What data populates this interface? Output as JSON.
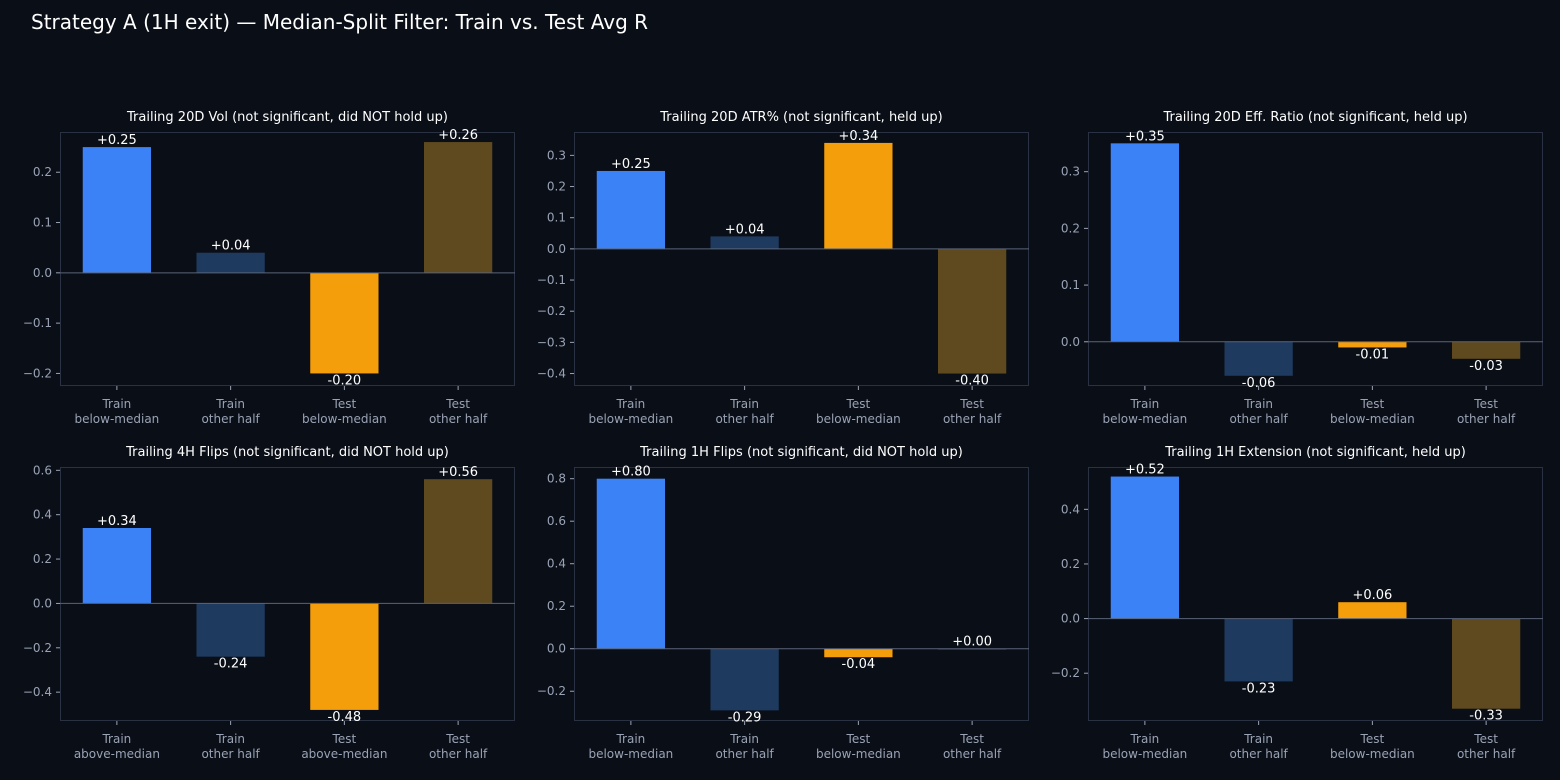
{
  "figure": {
    "title": "Strategy A (1H exit) — Median-Split Filter: Train vs. Test Avg R"
  },
  "colors": {
    "background": "#0a0e17",
    "axes_frame": "#2a3142",
    "zero_line": "#5a6478",
    "tick_text": "#9aa3b5",
    "title_text": "#ffffff",
    "value_text": "#ffffff",
    "bars": [
      "#3b82f6",
      "#1e3a5f",
      "#f59e0b",
      "#5f4a1f"
    ]
  },
  "chart_data": [
    {
      "type": "bar",
      "title": "Trailing 20D Vol (not significant, did NOT hold up)",
      "categories": [
        [
          "Train",
          "below-median"
        ],
        [
          "Train",
          "other half"
        ],
        [
          "Test",
          "below-median"
        ],
        [
          "Test",
          "other half"
        ]
      ],
      "values": [
        0.25,
        0.04,
        -0.2,
        0.26
      ],
      "value_labels": [
        "+0.25",
        "+0.04",
        "-0.20",
        "+0.26"
      ],
      "ylim": [
        -0.225,
        0.28
      ],
      "yticks": [
        -0.2,
        -0.1,
        0.0,
        0.1,
        0.2
      ],
      "ytick_labels": [
        "−0.2",
        "−0.1",
        "0.0",
        "0.1",
        "0.2"
      ],
      "xlabel": "",
      "ylabel": "",
      "grid": false
    },
    {
      "type": "bar",
      "title": "Trailing 20D ATR% (not significant, held up)",
      "categories": [
        [
          "Train",
          "below-median"
        ],
        [
          "Train",
          "other half"
        ],
        [
          "Test",
          "below-median"
        ],
        [
          "Test",
          "other half"
        ]
      ],
      "values": [
        0.25,
        0.04,
        0.34,
        -0.4
      ],
      "value_labels": [
        "+0.25",
        "+0.04",
        "+0.34",
        "-0.40"
      ],
      "ylim": [
        -0.44,
        0.375
      ],
      "yticks": [
        -0.4,
        -0.3,
        -0.2,
        -0.1,
        0.0,
        0.1,
        0.2,
        0.3
      ],
      "ytick_labels": [
        "−0.4",
        "−0.3",
        "−0.2",
        "−0.1",
        "0.0",
        "0.1",
        "0.2",
        "0.3"
      ],
      "xlabel": "",
      "ylabel": "",
      "grid": false
    },
    {
      "type": "bar",
      "title": "Trailing 20D Eff. Ratio (not significant, held up)",
      "categories": [
        [
          "Train",
          "below-median"
        ],
        [
          "Train",
          "other half"
        ],
        [
          "Test",
          "below-median"
        ],
        [
          "Test",
          "other half"
        ]
      ],
      "values": [
        0.35,
        -0.06,
        -0.01,
        -0.03
      ],
      "value_labels": [
        "+0.35",
        "-0.06",
        "-0.01",
        "-0.03"
      ],
      "ylim": [
        -0.078,
        0.37
      ],
      "yticks": [
        0.0,
        0.1,
        0.2,
        0.3
      ],
      "ytick_labels": [
        "0.0",
        "0.1",
        "0.2",
        "0.3"
      ],
      "xlabel": "",
      "ylabel": "",
      "grid": false
    },
    {
      "type": "bar",
      "title": "Trailing 4H Flips (not significant, did NOT hold up)",
      "categories": [
        [
          "Train",
          "above-median"
        ],
        [
          "Train",
          "other half"
        ],
        [
          "Test",
          "above-median"
        ],
        [
          "Test",
          "other half"
        ]
      ],
      "values": [
        0.34,
        -0.24,
        -0.48,
        0.56
      ],
      "value_labels": [
        "+0.34",
        "-0.24",
        "-0.48",
        "+0.56"
      ],
      "ylim": [
        -0.53,
        0.615
      ],
      "yticks": [
        -0.4,
        -0.2,
        0.0,
        0.2,
        0.4,
        0.6
      ],
      "ytick_labels": [
        "−0.4",
        "−0.2",
        "0.0",
        "0.2",
        "0.4",
        "0.6"
      ],
      "xlabel": "",
      "ylabel": "",
      "grid": false
    },
    {
      "type": "bar",
      "title": "Trailing 1H Flips (not significant, did NOT hold up)",
      "categories": [
        [
          "Train",
          "below-median"
        ],
        [
          "Train",
          "other half"
        ],
        [
          "Test",
          "below-median"
        ],
        [
          "Test",
          "other half"
        ]
      ],
      "values": [
        0.8,
        -0.29,
        -0.04,
        0.0
      ],
      "value_labels": [
        "+0.80",
        "-0.29",
        "-0.04",
        "+0.00"
      ],
      "ylim": [
        -0.34,
        0.855
      ],
      "yticks": [
        -0.2,
        0.0,
        0.2,
        0.4,
        0.6,
        0.8
      ],
      "ytick_labels": [
        "−0.2",
        "0.0",
        "0.2",
        "0.4",
        "0.6",
        "0.8"
      ],
      "xlabel": "",
      "ylabel": "",
      "grid": false
    },
    {
      "type": "bar",
      "title": "Trailing 1H Extension (not significant, held up)",
      "categories": [
        [
          "Train",
          "below-median"
        ],
        [
          "Train",
          "other half"
        ],
        [
          "Test",
          "below-median"
        ],
        [
          "Test",
          "other half"
        ]
      ],
      "values": [
        0.52,
        -0.23,
        0.06,
        -0.33
      ],
      "value_labels": [
        "+0.52",
        "-0.23",
        "+0.06",
        "-0.33"
      ],
      "ylim": [
        -0.375,
        0.555
      ],
      "yticks": [
        -0.2,
        0.0,
        0.2,
        0.4
      ],
      "ytick_labels": [
        "−0.2",
        "0.0",
        "0.2",
        "0.4"
      ],
      "xlabel": "",
      "ylabel": "",
      "grid": false
    }
  ]
}
